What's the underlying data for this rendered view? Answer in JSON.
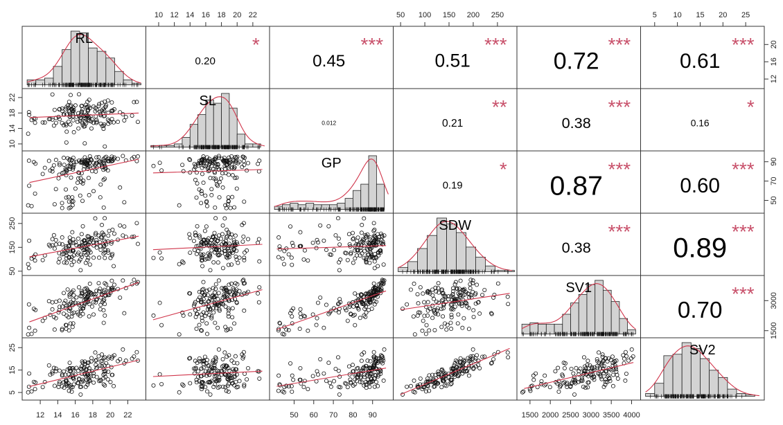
{
  "chart_data": {
    "type": "scatter",
    "title": "",
    "variables": [
      "RL",
      "SL",
      "GP",
      "SDW",
      "SV1",
      "SV2"
    ],
    "ranges": {
      "RL": [
        10.5,
        23.5
      ],
      "SL": [
        9.0,
        23.5
      ],
      "GP": [
        40,
        98
      ],
      "SDW": [
        45,
        280
      ],
      "SV1": [
        1300,
        4100
      ],
      "SV2": [
        3,
        28
      ]
    },
    "axis_ticks": {
      "top": [
        {
          "column": "SL",
          "ticks": [
            "10",
            "12",
            "14",
            "16",
            "18",
            "20",
            "22"
          ],
          "values": [
            10,
            12,
            14,
            16,
            18,
            20,
            22
          ]
        },
        {
          "column": "SDW",
          "ticks": [
            "50",
            "100",
            "150",
            "200",
            "250"
          ],
          "values": [
            50,
            100,
            150,
            200,
            250
          ]
        },
        {
          "column": "SV2",
          "ticks": [
            "5",
            "10",
            "15",
            "20",
            "25"
          ],
          "values": [
            5,
            10,
            15,
            20,
            25
          ]
        }
      ],
      "bottom": [
        {
          "column": "RL",
          "ticks": [
            "12",
            "14",
            "16",
            "18",
            "20",
            "22"
          ],
          "values": [
            12,
            14,
            16,
            18,
            20,
            22
          ]
        },
        {
          "column": "GP",
          "ticks": [
            "50",
            "60",
            "70",
            "80",
            "90"
          ],
          "values": [
            50,
            60,
            70,
            80,
            90
          ]
        },
        {
          "column": "SV1",
          "ticks": [
            "1500",
            "2000",
            "2500",
            "3000",
            "3500",
            "4000"
          ],
          "values": [
            1500,
            2000,
            2500,
            3000,
            3500,
            4000
          ]
        }
      ],
      "left": [
        {
          "row": "SL",
          "ticks": [
            "10",
            "14",
            "18",
            "22"
          ],
          "values": [
            10,
            14,
            18,
            22
          ]
        },
        {
          "row": "SDW",
          "ticks": [
            "50",
            "150",
            "250"
          ],
          "values": [
            50,
            150,
            250
          ]
        },
        {
          "row": "SV2",
          "ticks": [
            "5",
            "15",
            "25"
          ],
          "values": [
            5,
            15,
            25
          ]
        }
      ],
      "right": [
        {
          "row": "RL",
          "ticks": [
            "12",
            "16",
            "20"
          ],
          "values": [
            12,
            16,
            20
          ]
        },
        {
          "row": "GP",
          "ticks": [
            "50",
            "70",
            "90"
          ],
          "values": [
            50,
            70,
            90
          ]
        },
        {
          "row": "SV1",
          "ticks": [
            "1500",
            "3000"
          ],
          "values": [
            1500,
            3000
          ]
        }
      ]
    },
    "correlations": [
      {
        "row": "RL",
        "col": "SL",
        "r": 0.2,
        "label": "0.20",
        "stars": "*"
      },
      {
        "row": "RL",
        "col": "GP",
        "r": 0.45,
        "label": "0.45",
        "stars": "***"
      },
      {
        "row": "RL",
        "col": "SDW",
        "r": 0.51,
        "label": "0.51",
        "stars": "***"
      },
      {
        "row": "RL",
        "col": "SV1",
        "r": 0.72,
        "label": "0.72",
        "stars": "***"
      },
      {
        "row": "RL",
        "col": "SV2",
        "r": 0.61,
        "label": "0.61",
        "stars": "***"
      },
      {
        "row": "SL",
        "col": "GP",
        "r": 0.012,
        "label": "0.012",
        "stars": ""
      },
      {
        "row": "SL",
        "col": "SDW",
        "r": 0.21,
        "label": "0.21",
        "stars": "**"
      },
      {
        "row": "SL",
        "col": "SV1",
        "r": 0.38,
        "label": "0.38",
        "stars": "***"
      },
      {
        "row": "SL",
        "col": "SV2",
        "r": 0.16,
        "label": "0.16",
        "stars": "*"
      },
      {
        "row": "GP",
        "col": "SDW",
        "r": 0.19,
        "label": "0.19",
        "stars": "*"
      },
      {
        "row": "GP",
        "col": "SV1",
        "r": 0.87,
        "label": "0.87",
        "stars": "***"
      },
      {
        "row": "GP",
        "col": "SV2",
        "r": 0.6,
        "label": "0.60",
        "stars": "***"
      },
      {
        "row": "SDW",
        "col": "SV1",
        "r": 0.38,
        "label": "0.38",
        "stars": "***"
      },
      {
        "row": "SDW",
        "col": "SV2",
        "r": 0.89,
        "label": "0.89",
        "stars": "***"
      },
      {
        "row": "SV1",
        "col": "SV2",
        "r": 0.7,
        "label": "0.70",
        "stars": "***"
      }
    ],
    "histograms": {
      "RL": {
        "bin_edges": [
          10.5,
          11.5,
          12.5,
          13.5,
          14.5,
          15.5,
          16.5,
          17.5,
          18.5,
          19.5,
          20.5,
          21.5,
          22.5,
          23.5
        ],
        "counts": [
          3,
          3,
          4,
          11,
          21,
          32,
          31,
          22,
          20,
          16,
          8,
          3,
          1
        ]
      },
      "SL": {
        "bin_edges": [
          9,
          10,
          11,
          12,
          13,
          14,
          15,
          16,
          17,
          18,
          19,
          20,
          21,
          22,
          23
        ],
        "counts": [
          1,
          1,
          1,
          2,
          6,
          14,
          20,
          29,
          27,
          33,
          24,
          8,
          2,
          2
        ]
      },
      "GP": {
        "bin_edges": [
          40,
          44,
          48,
          52,
          56,
          60,
          64,
          68,
          72,
          76,
          80,
          84,
          88,
          92,
          96
        ],
        "counts": [
          2,
          3,
          4,
          3,
          4,
          3,
          3,
          3,
          4,
          7,
          12,
          16,
          34,
          16
        ]
      },
      "SDW": {
        "bin_edges": [
          45,
          65,
          85,
          105,
          125,
          145,
          165,
          185,
          205,
          225,
          245,
          265,
          285
        ],
        "counts": [
          3,
          7,
          16,
          25,
          37,
          33,
          27,
          17,
          10,
          4,
          1,
          1
        ]
      },
      "SV1": {
        "bin_edges": [
          1300,
          1500,
          1700,
          1900,
          2100,
          2300,
          2500,
          2700,
          2900,
          3100,
          3300,
          3500,
          3700,
          3900,
          4100
        ],
        "counts": [
          7,
          8,
          7,
          7,
          7,
          14,
          22,
          28,
          35,
          38,
          31,
          23,
          11,
          3
        ]
      },
      "SV2": {
        "bin_edges": [
          3,
          5,
          7,
          9,
          11,
          13,
          15,
          17,
          19,
          21,
          23,
          25,
          27
        ],
        "counts": [
          2,
          9,
          28,
          29,
          37,
          33,
          26,
          18,
          13,
          5,
          2,
          1
        ]
      }
    },
    "n_points": 160
  }
}
